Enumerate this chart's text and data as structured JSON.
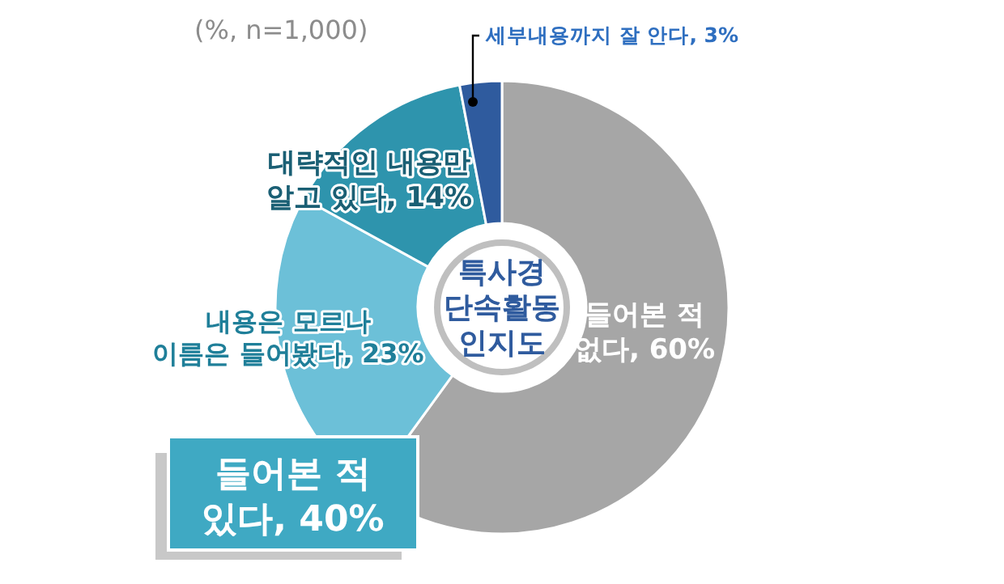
{
  "chart_data": {
    "type": "donut",
    "title": "특사경 단속활동 인지도",
    "categories": [
      "들어본 적 없다",
      "내용은 모르나 이름은 들어봤다",
      "대략적인 내용만 알고 있다",
      "세부내용까지 잘 안다"
    ],
    "values": [
      60,
      23,
      14,
      3
    ],
    "value_labels": [
      "60%",
      "23%",
      "14%",
      "3%"
    ],
    "colors": [
      "#a6a6a6",
      "#6cc0d8",
      "#2e94ad",
      "#2f5b9e"
    ],
    "annotations": [
      "(%, n=1,000)",
      "들어본 적 있다, 40%"
    ],
    "legend": false
  }
}
